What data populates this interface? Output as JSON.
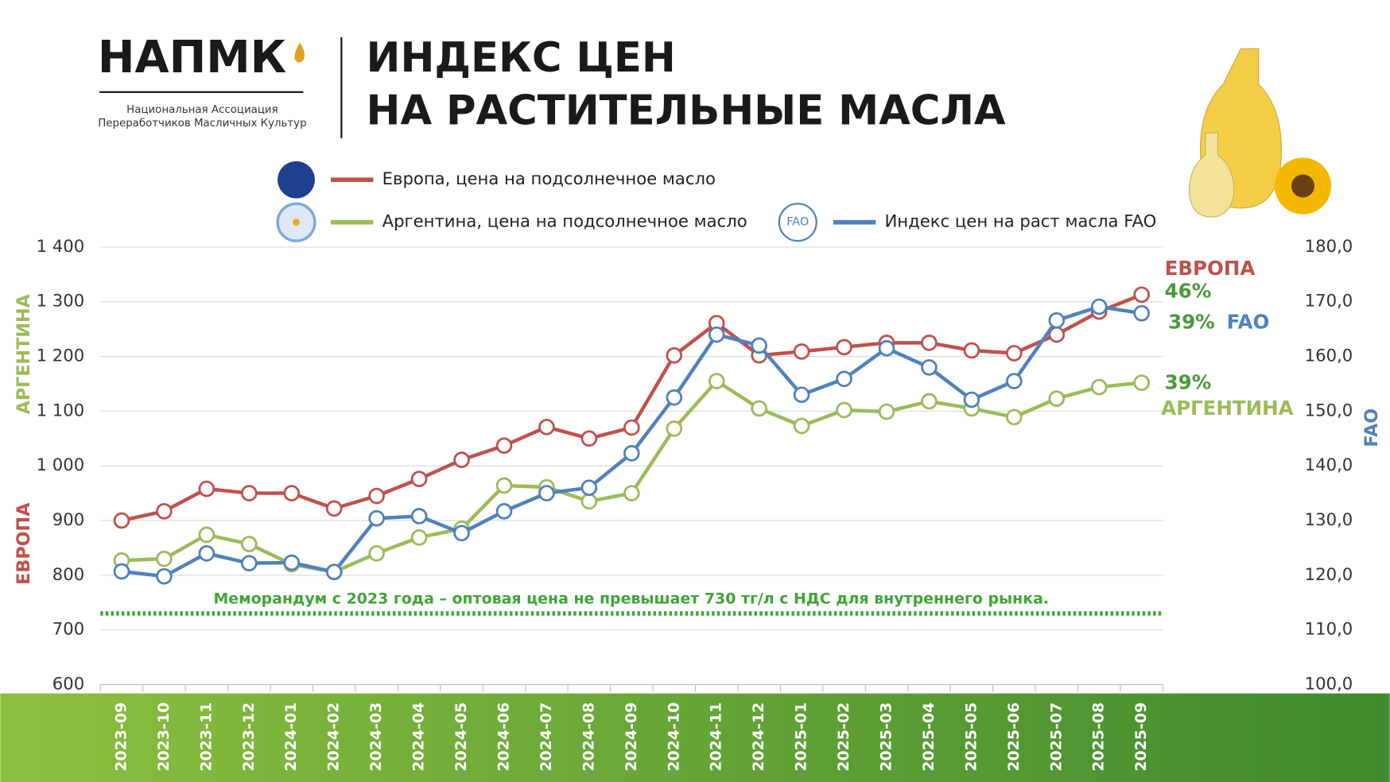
{
  "header": {
    "logo": "НАПМК",
    "org_lines": [
      "Национальная Ассоциация",
      "Переработчиков Масличных Культур"
    ],
    "title_lines": [
      "ИНДЕКС ЦЕН",
      "НА РАСТИТЕЛЬНЫЕ МАСЛА"
    ]
  },
  "chart_data": {
    "type": "line",
    "categories": [
      "2023-09",
      "2023-10",
      "2023-11",
      "2023-12",
      "2024-01",
      "2024-02",
      "2024-03",
      "2024-04",
      "2024-05",
      "2024-06",
      "2024-07",
      "2024-08",
      "2024-09",
      "2024-10",
      "2024-11",
      "2024-12",
      "2025-01",
      "2025-02",
      "2025-03",
      "2025-04",
      "2025-05",
      "2025-06",
      "2025-07",
      "2025-08",
      "2025-09"
    ],
    "series": [
      {
        "name": "Европа, цена на подсолнечное масло",
        "color": "#c0504d",
        "values": [
          900,
          917,
          958,
          950,
          950,
          922,
          945,
          976,
          1011,
          1037,
          1071,
          1050,
          1070,
          1202,
          1261,
          1202,
          1209,
          1217,
          1225,
          1225,
          1211,
          1206,
          1240,
          1282,
          1313
        ]
      },
      {
        "name": "Аргентина, цена на подсолнечное масло",
        "color": "#9bbb59",
        "values": [
          827,
          830,
          874,
          857,
          820,
          806,
          840,
          869,
          885,
          964,
          961,
          935,
          950,
          1068,
          1155,
          1105,
          1073,
          1102,
          1099,
          1118,
          1105,
          1089,
          1123,
          1144,
          1152
        ]
      },
      {
        "name": "Индекс цен на раст масла FAO",
        "color": "#4f81bd",
        "axis": "y2",
        "values": [
          120.7,
          119.8,
          124.0,
          122.2,
          122.3,
          120.6,
          130.4,
          130.8,
          127.7,
          131.7,
          135.0,
          136.0,
          142.3,
          152.5,
          164.0,
          162.0,
          153.0,
          155.9,
          161.5,
          158.0,
          152.1,
          155.5,
          166.6,
          169.1,
          167.9
        ]
      }
    ],
    "ylim": [
      600,
      1400
    ],
    "yticks": [
      {
        "value": 600,
        "label": "600"
      },
      {
        "value": 700,
        "label": "700"
      },
      {
        "value": 800,
        "label": "800"
      },
      {
        "value": 900,
        "label": "900"
      },
      {
        "value": 1000,
        "label": "1 000"
      },
      {
        "value": 1100,
        "label": "1 100"
      },
      {
        "value": 1200,
        "label": "1 200"
      },
      {
        "value": 1300,
        "label": "1 300"
      },
      {
        "value": 1400,
        "label": "1 400"
      }
    ],
    "y2lim": [
      100,
      180
    ],
    "y2ticks": [
      {
        "value": 100,
        "label": "100,0"
      },
      {
        "value": 110,
        "label": "110,0"
      },
      {
        "value": 120,
        "label": "120,0"
      },
      {
        "value": 130,
        "label": "130,0"
      },
      {
        "value": 140,
        "label": "140,0"
      },
      {
        "value": 150,
        "label": "150,0"
      },
      {
        "value": 160,
        "label": "160,0"
      },
      {
        "value": 170,
        "label": "170,0"
      },
      {
        "value": 180,
        "label": "180,0"
      }
    ],
    "grid": true,
    "y_labels": [
      {
        "text": "АРГЕНТИНА",
        "color": "#9bbb59"
      },
      {
        "text": "ЕВРОПА",
        "color": "#c0504d"
      }
    ],
    "y2_label": {
      "text": "FAO",
      "color": "#4f81bd"
    },
    "reference_line": {
      "value": 730,
      "label": "Меморандум с 2023 года  – оптовая цена не превышает 730 тг/л с НДС для внутреннего рынка.",
      "color": "#3fa535"
    },
    "annotations": [
      {
        "text": "ЕВРОПА",
        "color": "#c0504d"
      },
      {
        "text": "46%",
        "color": "#4a9a3a"
      },
      {
        "text": "39%",
        "color": "#4a9a3a"
      },
      {
        "text": "FAO",
        "color": "#4f81bd"
      },
      {
        "text": "39%",
        "color": "#4a9a3a"
      },
      {
        "text": "АРГЕНТИНА",
        "color": "#9bbb59"
      }
    ]
  }
}
